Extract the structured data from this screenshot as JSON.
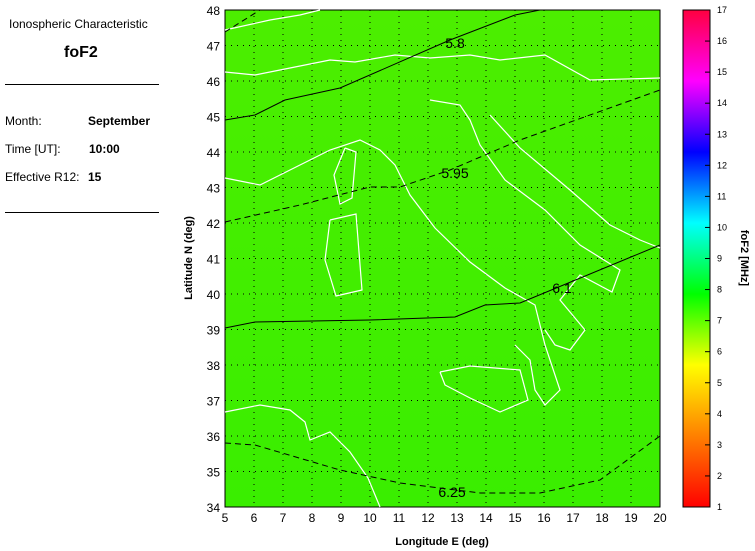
{
  "panel": {
    "title": "Ionospheric Characteristic",
    "characteristic": "foF2",
    "fields": [
      {
        "label": "Month:",
        "value": "September"
      },
      {
        "label": "Time [UT]:",
        "value": "10:00"
      },
      {
        "label": "Effective R12:",
        "value": "15"
      }
    ]
  },
  "map": {
    "xlabel": "Longitude E (deg)",
    "ylabel": "Latitude N (deg)",
    "xlim": [
      5,
      20
    ],
    "ylim": [
      34,
      48
    ],
    "xticks": [
      "5",
      "6",
      "7",
      "8",
      "9",
      "10",
      "11",
      "12",
      "13",
      "14",
      "15",
      "16",
      "17",
      "18",
      "19",
      "20"
    ],
    "yticks": [
      "34",
      "35",
      "36",
      "37",
      "38",
      "39",
      "40",
      "41",
      "42",
      "43",
      "44",
      "45",
      "46",
      "47",
      "48"
    ],
    "grid": true,
    "background_color": "#44ee00",
    "coastline_color": "#ffffff",
    "contours": [
      {
        "label": "5.8",
        "style": "solid"
      },
      {
        "label": "5.95",
        "style": "dashed"
      },
      {
        "label": "6.1",
        "style": "solid"
      },
      {
        "label": "6.25",
        "style": "dashed"
      }
    ]
  },
  "colorbar": {
    "label": "foF2 [MHz]",
    "range": [
      1,
      17
    ],
    "ticks": [
      "1",
      "2",
      "3",
      "4",
      "5",
      "6",
      "7",
      "8",
      "9",
      "10",
      "11",
      "12",
      "13",
      "14",
      "15",
      "16",
      "17"
    ],
    "colormap": [
      "#ff0000",
      "#ff8000",
      "#ffff00",
      "#00ff00",
      "#00ffff",
      "#0000ff",
      "#ff00ff",
      "#ff0040"
    ]
  }
}
